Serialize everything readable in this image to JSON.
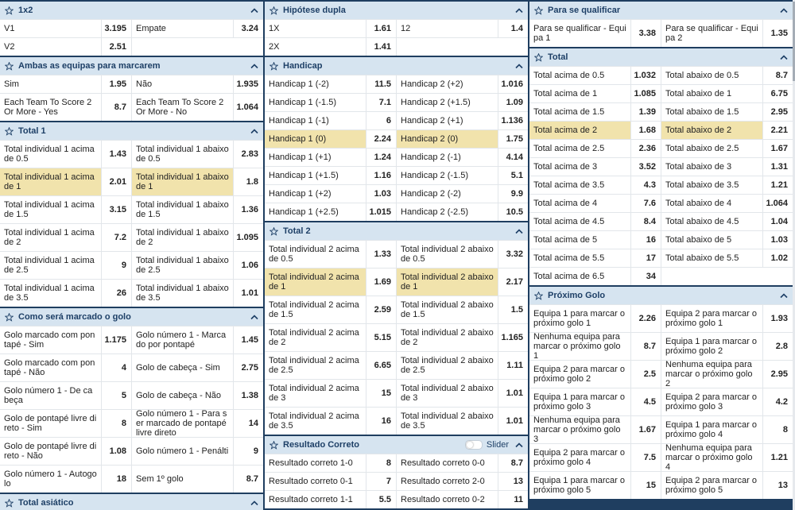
{
  "columns": [
    {
      "panels": [
        {
          "title": "1x2",
          "rows": [
            [
              "V1",
              "3.195",
              "Empate",
              "3.24"
            ],
            [
              "V2",
              "2.51"
            ]
          ]
        },
        {
          "title": "Ambas as equipas para marcarem",
          "rows": [
            [
              "Sim",
              "1.95",
              "Não",
              "1.935"
            ],
            [
              "Each Team To Score 2 Or More - Yes",
              "8.7",
              "Each Team To Score 2 Or More - No",
              "1.064"
            ]
          ]
        },
        {
          "title": "Total 1",
          "highlight_row": 1,
          "rows": [
            [
              "Total individual 1 acima de 0.5",
              "1.43",
              "Total individual 1 abaixo de 0.5",
              "2.83"
            ],
            [
              "Total individual 1 acima de 1",
              "2.01",
              "Total individual 1 abaixo de 1",
              "1.8"
            ],
            [
              "Total individual 1 acima de 1.5",
              "3.15",
              "Total individual 1 abaixo de 1.5",
              "1.36"
            ],
            [
              "Total individual 1 acima de 2",
              "7.2",
              "Total individual 1 abaixo de 2",
              "1.095"
            ],
            [
              "Total individual 1 acima de 2.5",
              "9",
              "Total individual 1 abaixo de 2.5",
              "1.06"
            ],
            [
              "Total individual 1 acima de 3.5",
              "26",
              "Total individual 1 abaixo de 3.5",
              "1.01"
            ]
          ]
        },
        {
          "title": "Como será marcado o golo",
          "rows": [
            [
              "Golo marcado com pontapé - Sim",
              "1.175",
              "Golo número 1 - Marcado por pontapé",
              "1.45"
            ],
            [
              "Golo marcado com pontapé - Não",
              "4",
              "Golo de cabeça - Sim",
              "2.75"
            ],
            [
              "Golo número 1 - De cabeça",
              "5",
              "Golo de cabeça - Não",
              "1.38"
            ],
            [
              "Golo de pontapé livre direto - Sim",
              "8",
              "Golo número 1 - Para ser marcado de pontapé livre direto",
              "14"
            ],
            [
              "Golo de pontapé livre direto - Não",
              "1.08",
              "Golo número 1 - Penálti",
              "9"
            ],
            [
              "Golo número 1 - Autogolo",
              "18",
              "Sem 1º golo",
              "8.7"
            ]
          ]
        },
        {
          "title": "Total asiático",
          "rows": []
        }
      ]
    },
    {
      "panels": [
        {
          "title": "Hipótese dupla",
          "rows": [
            [
              "1X",
              "1.61",
              "12",
              "1.4"
            ],
            [
              "2X",
              "1.41"
            ]
          ]
        },
        {
          "title": "Handicap",
          "highlight_row": 3,
          "rows": [
            [
              "Handicap 1 (-2)",
              "11.5",
              "Handicap 2 (+2)",
              "1.016"
            ],
            [
              "Handicap 1 (-1.5)",
              "7.1",
              "Handicap 2 (+1.5)",
              "1.09"
            ],
            [
              "Handicap 1 (-1)",
              "6",
              "Handicap 2 (+1)",
              "1.136"
            ],
            [
              "Handicap 1 (0)",
              "2.24",
              "Handicap 2 (0)",
              "1.75"
            ],
            [
              "Handicap 1 (+1)",
              "1.24",
              "Handicap 2 (-1)",
              "4.14"
            ],
            [
              "Handicap 1 (+1.5)",
              "1.16",
              "Handicap 2 (-1.5)",
              "5.1"
            ],
            [
              "Handicap 1 (+2)",
              "1.03",
              "Handicap 2 (-2)",
              "9.9"
            ],
            [
              "Handicap 1 (+2.5)",
              "1.015",
              "Handicap 2 (-2.5)",
              "10.5"
            ]
          ]
        },
        {
          "title": "Total 2",
          "highlight_row": 1,
          "rows": [
            [
              "Total individual 2 acima de 0.5",
              "1.33",
              "Total individual 2 abaixo de 0.5",
              "3.32"
            ],
            [
              "Total individual 2 acima de 1",
              "1.69",
              "Total individual 2 abaixo de 1",
              "2.17"
            ],
            [
              "Total individual 2 acima de 1.5",
              "2.59",
              "Total individual 2 abaixo de 1.5",
              "1.5"
            ],
            [
              "Total individual 2 acima de 2",
              "5.15",
              "Total individual 2 abaixo de 2",
              "1.165"
            ],
            [
              "Total individual 2 acima de 2.5",
              "6.65",
              "Total individual 2 abaixo de 2.5",
              "1.11"
            ],
            [
              "Total individual 2 acima de 3",
              "15",
              "Total individual 2 abaixo de 3",
              "1.01"
            ],
            [
              "Total individual 2 acima de 3.5",
              "16",
              "Total individual 2 abaixo de 3.5",
              "1.01"
            ]
          ]
        },
        {
          "title": "Resultado Correto",
          "toggle": "Slider",
          "rows": [
            [
              "Resultado correto 1-0",
              "8",
              "Resultado correto 0-0",
              "8.7"
            ],
            [
              "Resultado correto 0-1",
              "7",
              "Resultado correto 2-0",
              "13"
            ],
            [
              "Resultado correto 1-1",
              "5.5",
              "Resultado correto 0-2",
              "11"
            ]
          ]
        }
      ]
    },
    {
      "panels": [
        {
          "title": "Para se qualificar",
          "rows": [
            [
              "Para se qualificar - Equipa 1",
              "3.38",
              "Para se qualificar - Equipa 2",
              "1.35"
            ]
          ]
        },
        {
          "title": "Total",
          "highlight_row": 3,
          "rows": [
            [
              "Total acima de 0.5",
              "1.032",
              "Total abaixo de 0.5",
              "8.7"
            ],
            [
              "Total acima de 1",
              "1.085",
              "Total abaixo de 1",
              "6.75"
            ],
            [
              "Total acima de 1.5",
              "1.39",
              "Total abaixo de 1.5",
              "2.95"
            ],
            [
              "Total acima de 2",
              "1.68",
              "Total abaixo de 2",
              "2.21"
            ],
            [
              "Total acima de 2.5",
              "2.36",
              "Total abaixo de 2.5",
              "1.67"
            ],
            [
              "Total acima de 3",
              "3.52",
              "Total abaixo de 3",
              "1.31"
            ],
            [
              "Total acima de 3.5",
              "4.3",
              "Total abaixo de 3.5",
              "1.21"
            ],
            [
              "Total acima de 4",
              "7.6",
              "Total abaixo de 4",
              "1.064"
            ],
            [
              "Total acima de 4.5",
              "8.4",
              "Total abaixo de 4.5",
              "1.04"
            ],
            [
              "Total acima de 5",
              "16",
              "Total abaixo de 5",
              "1.03"
            ],
            [
              "Total acima de 5.5",
              "17",
              "Total abaixo de 5.5",
              "1.02"
            ],
            [
              "Total acima de 6.5",
              "34"
            ]
          ]
        },
        {
          "title": "Próximo Golo",
          "rows": [
            [
              "Equipa 1 para marcar o próximo golo 1",
              "2.26",
              "Equipa 2 para marcar o próximo golo 1",
              "1.93"
            ],
            [
              "Nenhuma equipa para marcar o próximo golo 1",
              "8.7",
              "Equipa 1 para marcar o próximo golo 2",
              "2.8"
            ],
            [
              "Equipa 2 para marcar o próximo golo 2",
              "2.5",
              "Nenhuma equipa para marcar o próximo golo 2",
              "2.95"
            ],
            [
              "Equipa 1 para marcar o próximo golo 3",
              "4.5",
              "Equipa 2 para marcar o próximo golo 3",
              "4.2"
            ],
            [
              "Nenhuma equipa para marcar o próximo golo 3",
              "1.67",
              "Equipa 1 para marcar o próximo golo 4",
              "8"
            ],
            [
              "Equipa 2 para marcar o próximo golo 4",
              "7.5",
              "Nenhuma equipa para marcar o próximo golo 4",
              "1.21"
            ],
            [
              "Equipa 1 para marcar o próximo golo 5",
              "15",
              "Equipa 2 para marcar o próximo golo 5",
              "13"
            ]
          ]
        }
      ]
    }
  ]
}
